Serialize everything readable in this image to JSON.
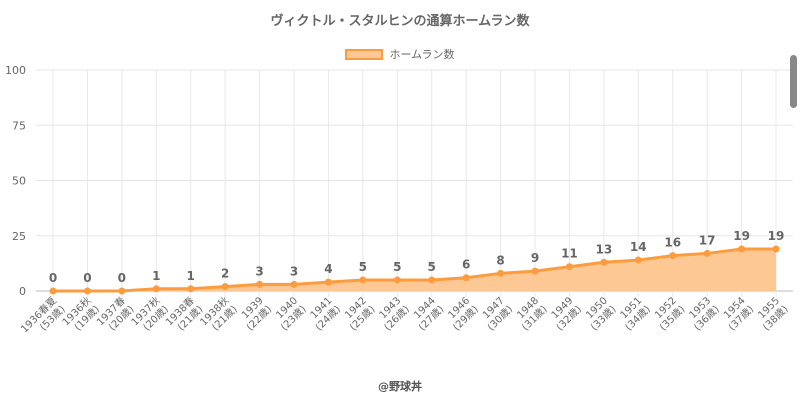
{
  "chart_data": {
    "type": "area",
    "title": "ヴィクトル・スタルヒンの通算ホームラン数",
    "legend": [
      "ホームラン数"
    ],
    "legend_position": "top",
    "categories": [
      "1936春夏",
      "1936秋",
      "1937春",
      "1937秋",
      "1938春",
      "1938秋",
      "1939",
      "1940",
      "1941",
      "1942",
      "1943",
      "1944",
      "1946",
      "1947",
      "1948",
      "1949",
      "1950",
      "1951",
      "1952",
      "1953",
      "1954",
      "1955"
    ],
    "ages": [
      "(53歳)",
      "(19歳)",
      "(20歳)",
      "(20歳)",
      "(21歳)",
      "(21歳)",
      "(22歳)",
      "(23歳)",
      "(24歳)",
      "(25歳)",
      "(26歳)",
      "(27歳)",
      "(29歳)",
      "(30歳)",
      "(31歳)",
      "(32歳)",
      "(33歳)",
      "(34歳)",
      "(35歳)",
      "(36歳)",
      "(37歳)",
      "(38歳)"
    ],
    "values": [
      0,
      0,
      0,
      1,
      1,
      2,
      3,
      3,
      4,
      5,
      5,
      5,
      6,
      8,
      9,
      11,
      13,
      14,
      16,
      17,
      19,
      19
    ],
    "yticks": [
      0,
      25,
      50,
      75,
      100
    ],
    "ylim": [
      0,
      100
    ],
    "grid": true,
    "colors": {
      "line": "#fd9c3e",
      "fill": "#fdc894"
    }
  },
  "footer": "@野球丼"
}
